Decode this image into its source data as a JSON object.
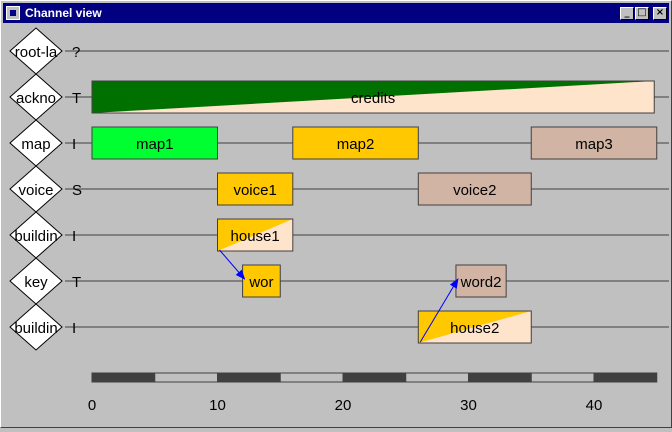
{
  "window": {
    "title": "Channel view",
    "buttons": [
      "minimize",
      "maximize",
      "close"
    ]
  },
  "channels": [
    {
      "name": "root-la",
      "type": "?"
    },
    {
      "name": "ackno",
      "type": "T"
    },
    {
      "name": "map",
      "type": "I"
    },
    {
      "name": "voice",
      "type": "S"
    },
    {
      "name": "buildin",
      "type": "I"
    },
    {
      "name": "key",
      "type": "T"
    },
    {
      "name": "buildin",
      "type": "I"
    }
  ],
  "items": [
    {
      "label": "credits",
      "row": 1,
      "start": 0,
      "end": 44.8,
      "style": "gradient",
      "fill": "#ffe4cc",
      "accent": "#007000"
    },
    {
      "label": "map1",
      "row": 2,
      "start": 0,
      "end": 10,
      "style": "solid",
      "fill": "#00ff30"
    },
    {
      "label": "map2",
      "row": 2,
      "start": 16,
      "end": 26,
      "style": "solid",
      "fill": "#ffc800"
    },
    {
      "label": "map3",
      "row": 2,
      "start": 35,
      "end": 45,
      "style": "solid",
      "fill": "#d2b4a5"
    },
    {
      "label": "voice1",
      "row": 3,
      "start": 10,
      "end": 16,
      "style": "solid",
      "fill": "#ffc800"
    },
    {
      "label": "voice2",
      "row": 3,
      "start": 26,
      "end": 35,
      "style": "solid",
      "fill": "#d2b4a5"
    },
    {
      "label": "house1",
      "row": 4,
      "start": 10,
      "end": 16,
      "style": "split",
      "fill": "#ffe4cc",
      "accent": "#ffc800"
    },
    {
      "label": "wor",
      "row": 5,
      "start": 12,
      "end": 15,
      "style": "solid",
      "fill": "#ffc800"
    },
    {
      "label": "word2",
      "row": 5,
      "start": 29,
      "end": 33,
      "style": "solid",
      "fill": "#d2b4a5"
    },
    {
      "label": "house2",
      "row": 6,
      "start": 26,
      "end": 35,
      "style": "split",
      "fill": "#ffe4cc",
      "accent": "#ffc800"
    }
  ],
  "arrows": [
    {
      "from": "house1",
      "to": "wor"
    },
    {
      "from": "house2",
      "to": "word2"
    }
  ],
  "axis": {
    "ticks": [
      0,
      10,
      20,
      30,
      40
    ],
    "tick_labels": [
      "0",
      "10",
      "20",
      "30",
      "40"
    ],
    "min": 0,
    "max": 45
  },
  "colors": {
    "link": "#0000ff",
    "track": "#404040",
    "track_alt": "#c0c0c0"
  }
}
